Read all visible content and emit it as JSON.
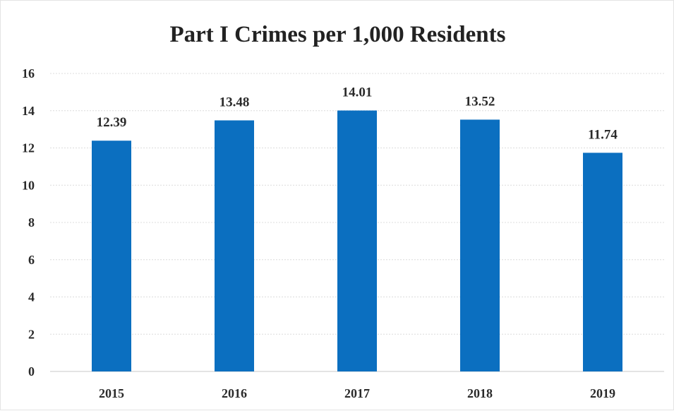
{
  "chart_data": {
    "type": "bar",
    "title": "Part I Crimes per 1,000 Residents",
    "xlabel": "",
    "ylabel": "",
    "categories": [
      "2015",
      "2016",
      "2017",
      "2018",
      "2019"
    ],
    "values": [
      12.39,
      13.48,
      14.01,
      13.52,
      11.74
    ],
    "value_labels": [
      "12.39",
      "13.48",
      "14.01",
      "13.52",
      "11.74"
    ],
    "ylim": [
      0,
      16
    ],
    "yticks": [
      "0",
      "2",
      "4",
      "6",
      "8",
      "10",
      "12",
      "14",
      "16"
    ],
    "grid": true,
    "legend": "none",
    "bar_color": "#0b6fc0"
  }
}
